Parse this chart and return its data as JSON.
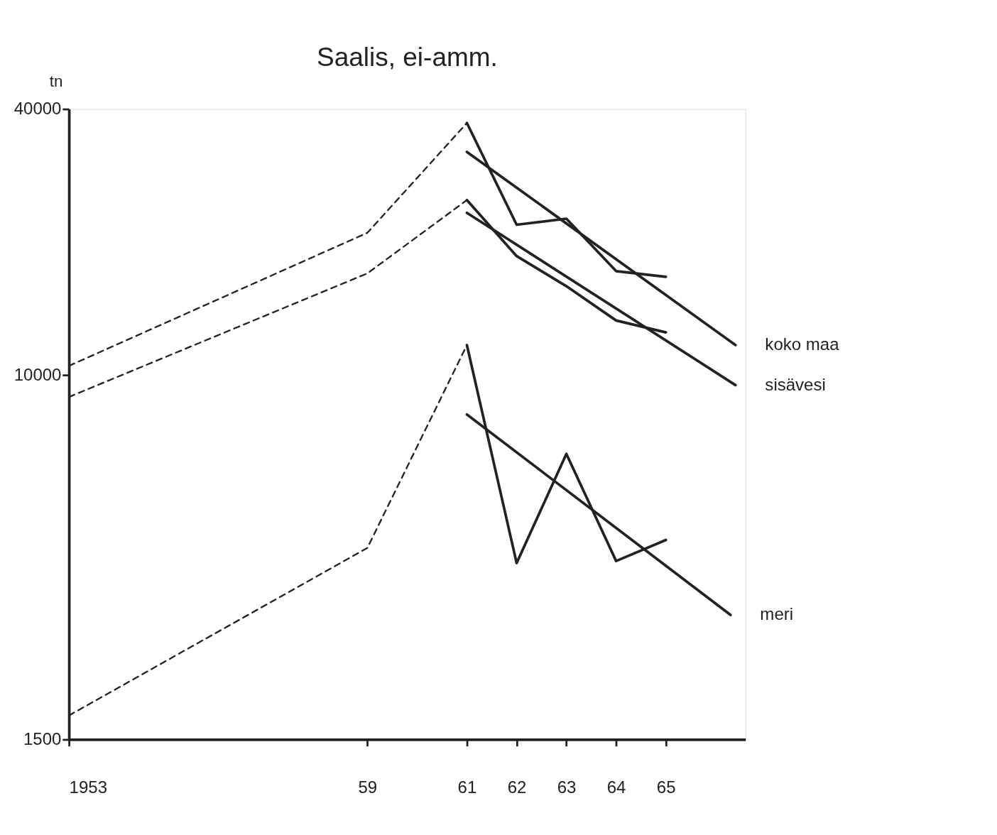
{
  "chart_data": {
    "type": "line",
    "title": "Saalis, ei-amm.",
    "ylabel": "tn",
    "log": "y",
    "legend": false,
    "grid": false,
    "marker": "none",
    "xlim": [
      1953,
      1966.6
    ],
    "ylim": [
      1500,
      40000
    ],
    "xticks": [
      {
        "value": 1953,
        "label": "1953"
      },
      {
        "value": 1959,
        "label": "59"
      },
      {
        "value": 1961,
        "label": "61"
      },
      {
        "value": 1962,
        "label": "62"
      },
      {
        "value": 1963,
        "label": "63"
      },
      {
        "value": 1964,
        "label": "64"
      },
      {
        "value": 1965,
        "label": "65"
      }
    ],
    "yticks": [
      1500,
      10000,
      40000
    ],
    "series": [
      {
        "color": "#222222",
        "line_style": "dashed",
        "x": [
          1953,
          1959,
          1961
        ],
        "values": [
          10500,
          21000,
          37200
        ]
      },
      {
        "color": "#222222",
        "line_style": "solid",
        "x": [
          1961,
          1962,
          1963,
          1964,
          1965
        ],
        "values": [
          37200,
          21900,
          22600,
          17200,
          16700
        ]
      },
      {
        "name": "koko maa",
        "color": "#222222",
        "line_style": "solid",
        "x": [
          1961,
          1966.4
        ],
        "values": [
          32000,
          11700
        ]
      },
      {
        "color": "#222222",
        "line_style": "dashed",
        "x": [
          1953,
          1959,
          1961
        ],
        "values": [
          8930,
          17000,
          24900
        ]
      },
      {
        "color": "#222222",
        "line_style": "solid",
        "x": [
          1961,
          1962,
          1963,
          1964,
          1965
        ],
        "values": [
          24900,
          18600,
          15900,
          13300,
          12500
        ]
      },
      {
        "name": "sisävesi",
        "color": "#222222",
        "line_style": "solid",
        "x": [
          1961,
          1966.4
        ],
        "values": [
          23300,
          9500
        ]
      },
      {
        "color": "#222222",
        "line_style": "dashed",
        "x": [
          1953,
          1959,
          1961
        ],
        "values": [
          1700,
          4070,
          11700
        ]
      },
      {
        "color": "#222222",
        "line_style": "solid",
        "x": [
          1961,
          1962,
          1963,
          1964,
          1965
        ],
        "values": [
          11700,
          3760,
          6640,
          3800,
          4240
        ]
      },
      {
        "name": "meri",
        "color": "#222222",
        "line_style": "solid",
        "x": [
          1961,
          1966.3
        ],
        "values": [
          8150,
          2870
        ]
      }
    ]
  }
}
